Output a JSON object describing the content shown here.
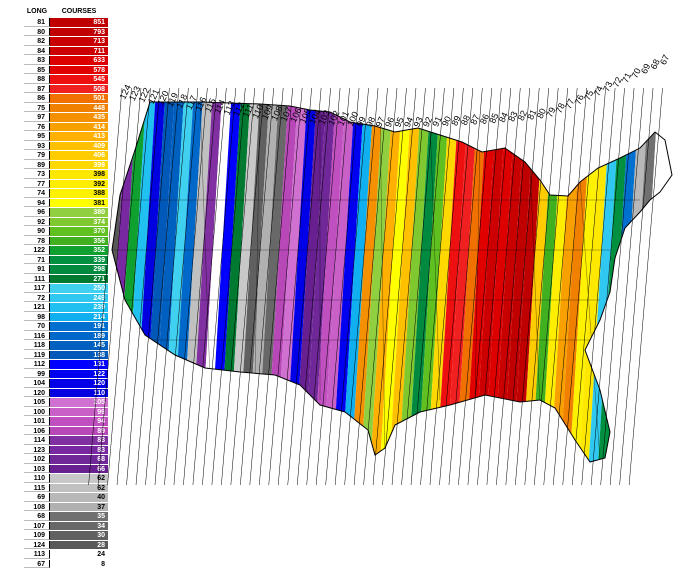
{
  "legend": {
    "long_header": "LONG",
    "courses_header": "COURSES",
    "rows": [
      {
        "long": "81",
        "courses": "851",
        "color": "#c00000"
      },
      {
        "long": "80",
        "courses": "793",
        "color": "#c00000"
      },
      {
        "long": "82",
        "courses": "713",
        "color": "#c80000"
      },
      {
        "long": "84",
        "courses": "711",
        "color": "#cc0000"
      },
      {
        "long": "83",
        "courses": "633",
        "color": "#dd0000"
      },
      {
        "long": "85",
        "courses": "578",
        "color": "#e00000"
      },
      {
        "long": "88",
        "courses": "545",
        "color": "#ee1010"
      },
      {
        "long": "87",
        "courses": "508",
        "color": "#f02020"
      },
      {
        "long": "86",
        "courses": "501",
        "color": "#f07000"
      },
      {
        "long": "75",
        "courses": "448",
        "color": "#f08000"
      },
      {
        "long": "97",
        "courses": "435",
        "color": "#f59000"
      },
      {
        "long": "76",
        "courses": "414",
        "color": "#f8a000"
      },
      {
        "long": "95",
        "courses": "413",
        "color": "#ffb000"
      },
      {
        "long": "93",
        "courses": "409",
        "color": "#ffc000"
      },
      {
        "long": "79",
        "courses": "406",
        "color": "#ffcc00"
      },
      {
        "long": "89",
        "courses": "399",
        "color": "#ffd800"
      },
      {
        "long": "73",
        "courses": "398",
        "color": "#ffe800"
      },
      {
        "long": "77",
        "courses": "392",
        "color": "#ffee00"
      },
      {
        "long": "74",
        "courses": "388",
        "color": "#fff200"
      },
      {
        "long": "94",
        "courses": "381",
        "color": "#ffff00"
      },
      {
        "long": "96",
        "courses": "380",
        "color": "#90d040"
      },
      {
        "long": "92",
        "courses": "374",
        "color": "#80c830"
      },
      {
        "long": "90",
        "courses": "370",
        "color": "#60c020"
      },
      {
        "long": "78",
        "courses": "356",
        "color": "#40b020"
      },
      {
        "long": "122",
        "courses": "352",
        "color": "#10a030"
      },
      {
        "long": "71",
        "courses": "339",
        "color": "#009040"
      },
      {
        "long": "91",
        "courses": "298",
        "color": "#008a40"
      },
      {
        "long": "111",
        "courses": "271",
        "color": "#007a30"
      },
      {
        "long": "117",
        "courses": "250",
        "color": "#40d0f0"
      },
      {
        "long": "72",
        "courses": "249",
        "color": "#30c8f0"
      },
      {
        "long": "121",
        "courses": "239",
        "color": "#20c0f0"
      },
      {
        "long": "98",
        "courses": "214",
        "color": "#10b0f0"
      },
      {
        "long": "70",
        "courses": "191",
        "color": "#0070d0"
      },
      {
        "long": "116",
        "courses": "189",
        "color": "#0068c8"
      },
      {
        "long": "118",
        "courses": "145",
        "color": "#0060c0"
      },
      {
        "long": "119",
        "courses": "138",
        "color": "#0058b8"
      },
      {
        "long": "112",
        "courses": "131",
        "color": "#0000ff"
      },
      {
        "long": "99",
        "courses": "122",
        "color": "#0000f0"
      },
      {
        "long": "104",
        "courses": "120",
        "color": "#0000e8"
      },
      {
        "long": "120",
        "courses": "110",
        "color": "#0000e0"
      },
      {
        "long": "105",
        "courses": "105",
        "color": "#d070d0"
      },
      {
        "long": "100",
        "courses": "99",
        "color": "#c860c8"
      },
      {
        "long": "101",
        "courses": "94",
        "color": "#c050c0"
      },
      {
        "long": "106",
        "courses": "89",
        "color": "#b848b8"
      },
      {
        "long": "114",
        "courses": "83",
        "color": "#8030a0"
      },
      {
        "long": "123",
        "courses": "83",
        "color": "#7828a0"
      },
      {
        "long": "102",
        "courses": "68",
        "color": "#702898"
      },
      {
        "long": "103",
        "courses": "66",
        "color": "#682090"
      },
      {
        "long": "110",
        "courses": "62",
        "color": "#c8c8c8"
      },
      {
        "long": "115",
        "courses": "62",
        "color": "#c0c0c0"
      },
      {
        "long": "69",
        "courses": "40",
        "color": "#b8b8b8"
      },
      {
        "long": "108",
        "courses": "37",
        "color": "#b0b0b0"
      },
      {
        "long": "68",
        "courses": "35",
        "color": "#707070"
      },
      {
        "long": "107",
        "courses": "34",
        "color": "#686868"
      },
      {
        "long": "109",
        "courses": "30",
        "color": "#606060"
      },
      {
        "long": "124",
        "courses": "28",
        "color": "#585858"
      },
      {
        "long": "113",
        "courses": "24",
        "color": "#ffffff"
      },
      {
        "long": "67",
        "courses": "8",
        "color": "#ffffff"
      }
    ]
  },
  "map": {
    "meridian_labels": [
      "124",
      "123",
      "122",
      "121",
      "120",
      "119",
      "118",
      "117",
      "116",
      "115",
      "114",
      "113",
      "112",
      "111",
      "110",
      "109",
      "108",
      "107",
      "106",
      "105",
      "104",
      "103",
      "102",
      "101",
      "100",
      "99",
      "98",
      "97",
      "96",
      "95",
      "94",
      "93",
      "92",
      "91",
      "90",
      "89",
      "88",
      "87",
      "86",
      "85",
      "84",
      "83",
      "82",
      "81",
      "80",
      "79",
      "78",
      "77",
      "76",
      "75",
      "74",
      "73",
      "72",
      "71",
      "70",
      "69",
      "68",
      "67"
    ]
  }
}
